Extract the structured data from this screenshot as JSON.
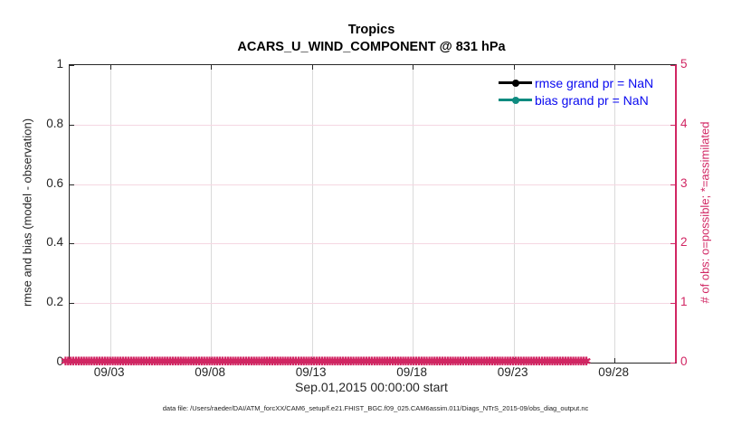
{
  "title": {
    "line1": "Tropics",
    "line2": "ACARS_U_WIND_COMPONENT @ 831 hPa"
  },
  "axis_labels": {
    "left": "rmse and bias (model - observation)",
    "right": "# of obs: o=possible; *=assimilated",
    "x": "Sep.01,2015 00:00:00 start"
  },
  "legend": {
    "items": [
      {
        "label": "rmse grand pr = NaN",
        "color": "#000000"
      },
      {
        "label": "bias grand pr = NaN",
        "color": "#0f8b80"
      }
    ]
  },
  "footer": {
    "data_file": "data file: /Users/raeder/DAI/ATM_forcXX/CAM6_setup/f.e21.FHIST_BGC.f09_025.CAM6assim.011/Diags_NTrS_2015-09/obs_diag_output.nc"
  },
  "colors": {
    "crimson": "#d12663",
    "teal": "#0f8b80",
    "legend_text": "#0808f0",
    "grid_vertical": "#dadada",
    "grid_horizontal": "#f5d7e2",
    "axis_text": "#262626"
  },
  "chart_data": {
    "type": "line",
    "title": "Tropics",
    "subtitle": "ACARS_U_WIND_COMPONENT @ 831 hPa",
    "xlabel": "Sep.01,2015 00:00:00 start",
    "ylabel_left": "rmse and bias (model - observation)",
    "ylabel_right": "# of obs: o=possible; *=assimilated",
    "x_range": [
      "2015-09-01 00:00:00",
      "2015-10-01 00:00:00"
    ],
    "xlim_days": [
      0,
      30
    ],
    "x_ticks": [
      {
        "label": "09/03",
        "day": 2
      },
      {
        "label": "09/08",
        "day": 7
      },
      {
        "label": "09/13",
        "day": 12
      },
      {
        "label": "09/18",
        "day": 17
      },
      {
        "label": "09/23",
        "day": 22
      },
      {
        "label": "09/28",
        "day": 27
      }
    ],
    "ylim_left": [
      0,
      1
    ],
    "yticks_left": [
      {
        "label": "0",
        "value": 0
      },
      {
        "label": "0.2",
        "value": 0.2
      },
      {
        "label": "0.4",
        "value": 0.4
      },
      {
        "label": "0.6",
        "value": 0.6
      },
      {
        "label": "0.8",
        "value": 0.8
      },
      {
        "label": "1",
        "value": 1
      }
    ],
    "ylim_right": [
      0,
      5
    ],
    "yticks_right": [
      {
        "label": "0",
        "value": 0
      },
      {
        "label": "1",
        "value": 1
      },
      {
        "label": "2",
        "value": 2
      },
      {
        "label": "3",
        "value": 3
      },
      {
        "label": "4",
        "value": 4
      },
      {
        "label": "5",
        "value": 5
      }
    ],
    "grid": true,
    "legend_position": "top-right-inside",
    "series": [
      {
        "name": "rmse grand pr = NaN",
        "color": "#000000",
        "marker": "filled-circle",
        "values": "NaN (no curve plotted)"
      },
      {
        "name": "bias grand pr = NaN",
        "color": "#0f8b80",
        "marker": "filled-circle",
        "values": "NaN (no curve plotted)"
      },
      {
        "name": "# of obs possible (o)",
        "color": "#d12663",
        "marker": "o",
        "values_constant": 0,
        "note": "0 at every time step Sep 01 - Sep 30 2015"
      },
      {
        "name": "# of obs assimilated (*)",
        "color": "#d12663",
        "marker": "*",
        "values_constant": 0,
        "note": "0 at every time step Sep 01 - Sep 30 2015"
      }
    ],
    "obs_band": {
      "glyph": "✱",
      "repeat": 200
    }
  }
}
